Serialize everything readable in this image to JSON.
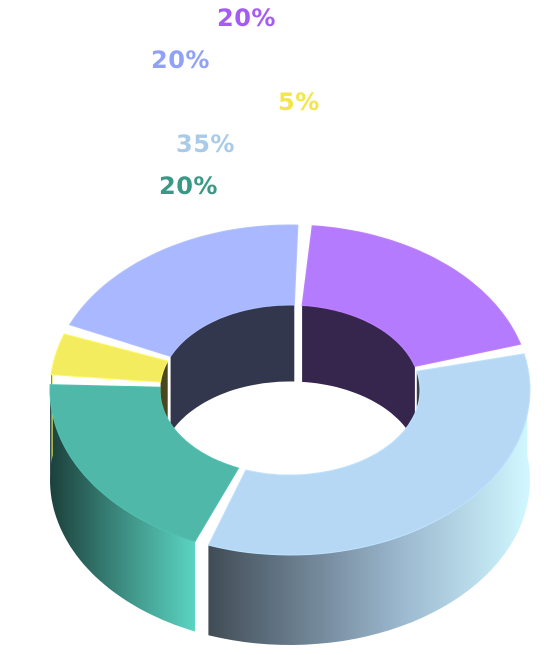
{
  "chart_data": {
    "type": "pie",
    "style": "3d-donut",
    "categories": [],
    "values": [
      20,
      20,
      5,
      35,
      20
    ],
    "labels": [
      "20%",
      "20%",
      "5%",
      "35%",
      "20%"
    ],
    "colors": [
      "#b57bff",
      "#a9b8ff",
      "#f3ec5f",
      "#b6d8f4",
      "#4fb8a8"
    ],
    "label_colors": [
      "#a45cf2",
      "#8fa2f7",
      "#f2e64a",
      "#a9cbe8",
      "#3a9886"
    ],
    "title": "",
    "legend": "none"
  }
}
